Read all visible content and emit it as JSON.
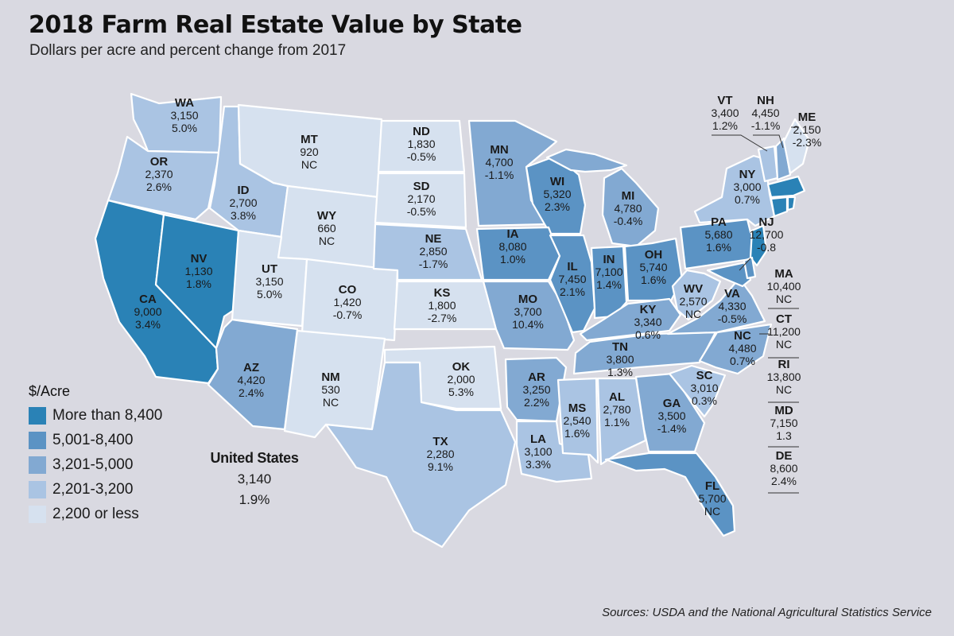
{
  "header": {
    "title": "2018 Farm Real Estate Value by State",
    "subtitle": "Dollars per acre and percent change from 2017"
  },
  "legend": {
    "title": "$/Acre",
    "items": [
      {
        "label": "More than 8,400",
        "color": "#2a82b6"
      },
      {
        "label": "5,001-8,400",
        "color": "#5b93c4"
      },
      {
        "label": "3,201-5,000",
        "color": "#82a9d2"
      },
      {
        "label": "2,201-3,200",
        "color": "#aac4e3"
      },
      {
        "label": "2,200 or less",
        "color": "#d6e1ef"
      }
    ]
  },
  "us": {
    "title": "United States",
    "value": "3,140",
    "change": "1.9%"
  },
  "states": {
    "WA": {
      "abbr": "WA",
      "value": "3,150",
      "change": "5.0%"
    },
    "OR": {
      "abbr": "OR",
      "value": "2,370",
      "change": "2.6%"
    },
    "CA": {
      "abbr": "CA",
      "value": "9,000",
      "change": "3.4%"
    },
    "ID": {
      "abbr": "ID",
      "value": "2,700",
      "change": "3.8%"
    },
    "NV": {
      "abbr": "NV",
      "value": "1,130",
      "change": "1.8%"
    },
    "MT": {
      "abbr": "MT",
      "value": "920",
      "change": "NC"
    },
    "WY": {
      "abbr": "WY",
      "value": "660",
      "change": "NC"
    },
    "UT": {
      "abbr": "UT",
      "value": "3,150",
      "change": "5.0%"
    },
    "AZ": {
      "abbr": "AZ",
      "value": "4,420",
      "change": "2.4%"
    },
    "CO": {
      "abbr": "CO",
      "value": "1,420",
      "change": "-0.7%"
    },
    "NM": {
      "abbr": "NM",
      "value": "530",
      "change": "NC"
    },
    "ND": {
      "abbr": "ND",
      "value": "1,830",
      "change": "-0.5%"
    },
    "SD": {
      "abbr": "SD",
      "value": "2,170",
      "change": "-0.5%"
    },
    "NE": {
      "abbr": "NE",
      "value": "2,850",
      "change": "-1.7%"
    },
    "KS": {
      "abbr": "KS",
      "value": "1,800",
      "change": "-2.7%"
    },
    "OK": {
      "abbr": "OK",
      "value": "2,000",
      "change": "5.3%"
    },
    "TX": {
      "abbr": "TX",
      "value": "2,280",
      "change": "9.1%"
    },
    "MN": {
      "abbr": "MN",
      "value": "4,700",
      "change": "-1.1%"
    },
    "IA": {
      "abbr": "IA",
      "value": "8,080",
      "change": "1.0%"
    },
    "MO": {
      "abbr": "MO",
      "value": "3,700",
      "change": "10.4%"
    },
    "AR": {
      "abbr": "AR",
      "value": "3,250",
      "change": "2.2%"
    },
    "LA": {
      "abbr": "LA",
      "value": "3,100",
      "change": "3.3%"
    },
    "WI": {
      "abbr": "WI",
      "value": "5,320",
      "change": "2.3%"
    },
    "IL": {
      "abbr": "IL",
      "value": "7,450",
      "change": "2.1%"
    },
    "MI": {
      "abbr": "MI",
      "value": "4,780",
      "change": "-0.4%"
    },
    "IN": {
      "abbr": "IN",
      "value": "7,100",
      "change": "1.4%"
    },
    "OH": {
      "abbr": "OH",
      "value": "5,740",
      "change": "1.6%"
    },
    "KY": {
      "abbr": "KY",
      "value": "3,340",
      "change": "0.6%"
    },
    "TN": {
      "abbr": "TN",
      "value": "3,800",
      "change": "1.3%"
    },
    "MS": {
      "abbr": "MS",
      "value": "2,540",
      "change": "1.6%"
    },
    "AL": {
      "abbr": "AL",
      "value": "2,780",
      "change": "1.1%"
    },
    "GA": {
      "abbr": "GA",
      "value": "3,500",
      "change": "-1.4%"
    },
    "FL": {
      "abbr": "FL",
      "value": "5,700",
      "change": "NC"
    },
    "SC": {
      "abbr": "SC",
      "value": "3,010",
      "change": "0.3%"
    },
    "NC": {
      "abbr": "NC",
      "value": "4,480",
      "change": "0.7%"
    },
    "VA": {
      "abbr": "VA",
      "value": "4,330",
      "change": "-0.5%"
    },
    "WV": {
      "abbr": "WV",
      "value": "2,570",
      "change": "NC"
    },
    "PA": {
      "abbr": "PA",
      "value": "5,680",
      "change": "1.6%"
    },
    "NY": {
      "abbr": "NY",
      "value": "3,000",
      "change": "0.7%"
    },
    "NJ": {
      "abbr": "NJ",
      "value": "12,700",
      "change": "-0.8"
    },
    "VT": {
      "abbr": "VT",
      "value": "3,400",
      "change": "1.2%"
    },
    "NH": {
      "abbr": "NH",
      "value": "4,450",
      "change": "-1.1%"
    },
    "ME": {
      "abbr": "ME",
      "value": "2,150",
      "change": "-2.3%"
    },
    "MA": {
      "abbr": "MA",
      "value": "10,400",
      "change": "NC"
    },
    "CT": {
      "abbr": "CT",
      "value": "11,200",
      "change": "NC"
    },
    "RI": {
      "abbr": "RI",
      "value": "13,800",
      "change": "NC"
    },
    "MD": {
      "abbr": "MD",
      "value": "7,150",
      "change": "1.3"
    },
    "DE": {
      "abbr": "DE",
      "value": "8,600",
      "change": "2.4%"
    }
  },
  "source": "Sources: USDA and the National Agricultural Statistics Service"
}
